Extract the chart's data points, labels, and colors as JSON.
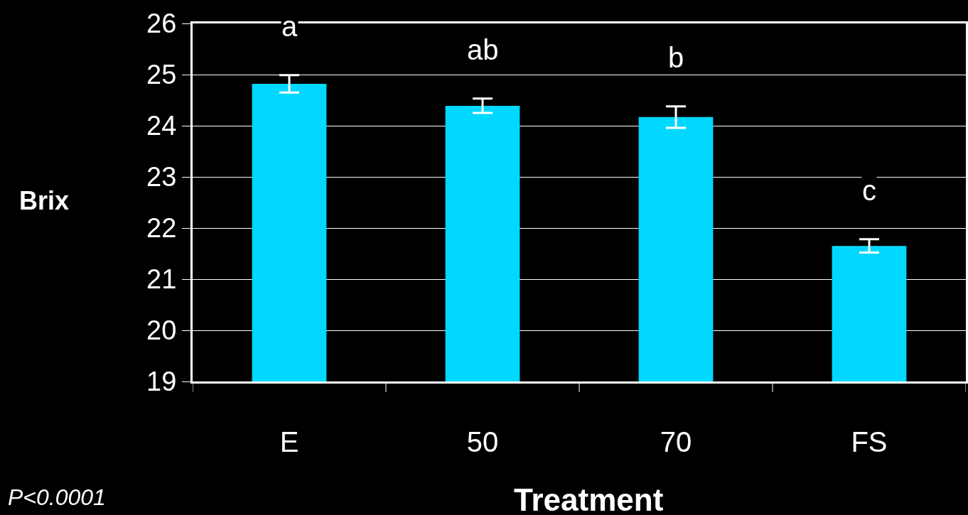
{
  "chart_data": {
    "type": "bar",
    "xlabel": "Treatment",
    "ylabel": "Brix",
    "categories": [
      "E",
      "50",
      "70",
      "FS"
    ],
    "values": [
      24.82,
      24.39,
      24.17,
      21.65
    ],
    "errors": [
      0.17,
      0.14,
      0.21,
      0.13
    ],
    "color": "#00d8ff",
    "ylim": [
      19,
      26
    ],
    "yticks": [
      19,
      20,
      21,
      22,
      23,
      24,
      25,
      26
    ],
    "grid": "y",
    "annotations": [
      "a",
      "ab",
      "b",
      "c",
      "P<0.0001"
    ]
  }
}
